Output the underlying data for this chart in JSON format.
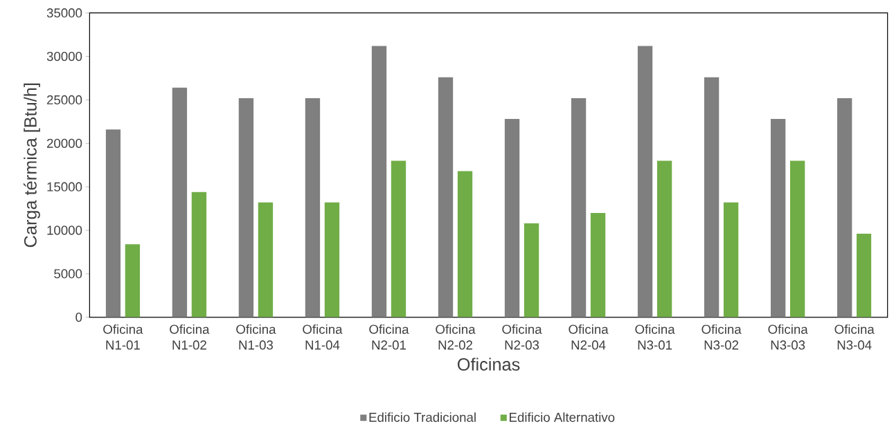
{
  "chart_data": {
    "type": "bar",
    "xlabel": "Oficinas",
    "ylabel": "Carga térmica [Btu/h]",
    "categories": [
      "Oficina N1-01",
      "Oficina N1-02",
      "Oficina N1-03",
      "Oficina N1-04",
      "Oficina N2-01",
      "Oficina N2-02",
      "Oficina N2-03",
      "Oficina N2-04",
      "Oficina N3-01",
      "Oficina N3-02",
      "Oficina N3-03",
      "Oficina N3-04"
    ],
    "series": [
      {
        "name": "Edificio Tradicional",
        "color": "#7f7f7f",
        "values": [
          21600,
          26400,
          25200,
          25200,
          31200,
          27600,
          22800,
          25200,
          31200,
          27600,
          22800,
          25200
        ]
      },
      {
        "name": "Edificio Alternativo",
        "color": "#70ad47",
        "values": [
          8400,
          14400,
          13200,
          13200,
          18000,
          16800,
          10800,
          12000,
          18000,
          13200,
          18000,
          9600
        ]
      }
    ],
    "ylim": [
      0,
      35000
    ],
    "yticks": [
      0,
      5000,
      10000,
      15000,
      20000,
      25000,
      30000,
      35000
    ],
    "grid": false,
    "legend": "bottom"
  }
}
